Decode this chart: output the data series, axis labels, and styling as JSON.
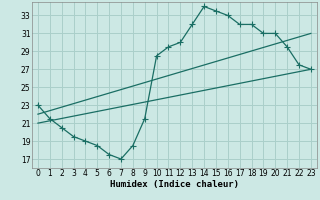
{
  "xlabel": "Humidex (Indice chaleur)",
  "bg_color": "#cce8e4",
  "grid_color": "#aacfca",
  "line_color": "#1a6e64",
  "xlim": [
    -0.5,
    23.5
  ],
  "ylim": [
    16,
    34.5
  ],
  "xticks": [
    0,
    1,
    2,
    3,
    4,
    5,
    6,
    7,
    8,
    9,
    10,
    11,
    12,
    13,
    14,
    15,
    16,
    17,
    18,
    19,
    20,
    21,
    22,
    23
  ],
  "yticks": [
    17,
    19,
    21,
    23,
    25,
    27,
    29,
    31,
    33
  ],
  "line1_x": [
    0,
    1,
    2,
    3,
    4,
    5,
    6,
    7,
    8,
    9,
    10,
    11,
    12,
    13,
    14,
    15,
    16,
    17,
    18,
    19,
    20,
    21,
    22,
    23
  ],
  "line1_y": [
    23,
    21.5,
    20.5,
    19.5,
    19,
    18.5,
    17.5,
    17,
    18.5,
    21.5,
    28.5,
    29.5,
    30,
    32,
    34,
    33.5,
    33,
    32,
    32,
    31,
    31,
    29.5,
    27.5,
    27
  ],
  "line2_x": [
    0,
    23
  ],
  "line2_y": [
    21,
    27
  ],
  "line3_x": [
    0,
    23
  ],
  "line3_y": [
    22,
    31
  ],
  "tick_fontsize": 5.5,
  "xlabel_fontsize": 6.5,
  "lw": 0.9,
  "ms": 2.2
}
